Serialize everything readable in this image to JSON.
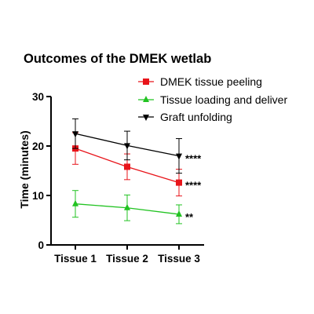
{
  "chart_data": {
    "type": "line",
    "title": "Outcomes of the DMEK wetlab",
    "xlabel": "",
    "ylabel": "Time (minutes)",
    "categories": [
      "Tissue 1",
      "Tissue 2",
      "Tissue 3"
    ],
    "ylim": [
      0,
      30
    ],
    "yticks": [
      0,
      10,
      20,
      30
    ],
    "grid": false,
    "legend_position": "top-right",
    "series": [
      {
        "name": "DMEK tissue peeling",
        "color": "#e8141a",
        "marker": "square",
        "values": [
          19.5,
          15.8,
          12.6
        ],
        "error": [
          3.2,
          2.6,
          2.7
        ],
        "significance": "****"
      },
      {
        "name": "Tissue loading and deliver",
        "color": "#22c322",
        "marker": "triangle-up",
        "values": [
          8.3,
          7.5,
          6.2
        ],
        "error": [
          2.7,
          2.6,
          1.9
        ],
        "significance": "**"
      },
      {
        "name": "Graft unfolding",
        "color": "#000000",
        "marker": "triangle-down",
        "values": [
          22.5,
          20.1,
          18.0
        ],
        "error": [
          3.0,
          2.9,
          3.5
        ],
        "significance": "****"
      }
    ]
  }
}
